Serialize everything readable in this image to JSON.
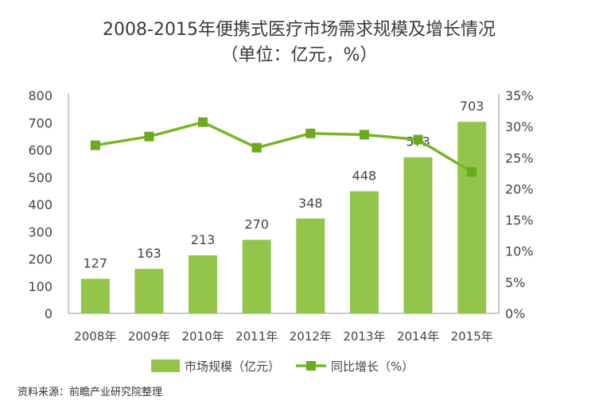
{
  "title": "2008-2015年便携式医疗市场需求规模及增长情况",
  "subtitle": "（单位：亿元，%）",
  "source": "资料来源：前瞻产业研究院整理",
  "colors": {
    "bar": "#92c54a",
    "line": "#78b526",
    "marker": "#6aaa1f",
    "axis": "#999999"
  },
  "chart_data": {
    "type": "bar",
    "categories": [
      "2008年",
      "2009年",
      "2010年",
      "2011年",
      "2012年",
      "2013年",
      "2014年",
      "2015年"
    ],
    "series": [
      {
        "name": "市场规模（亿元）",
        "type": "bar",
        "axis": "left",
        "values": [
          127,
          163,
          213,
          270,
          348,
          448,
          573,
          703
        ]
      },
      {
        "name": "同比增长（%）",
        "type": "line",
        "axis": "right",
        "values": [
          27.0,
          28.4,
          30.7,
          26.6,
          28.9,
          28.7,
          27.9,
          22.7
        ]
      }
    ],
    "ylim": [
      0,
      800
    ],
    "yticks": [
      "0",
      "100",
      "200",
      "300",
      "400",
      "500",
      "600",
      "700",
      "800"
    ],
    "y2lim": [
      0,
      35
    ],
    "y2ticks": [
      "0%",
      "5%",
      "10%",
      "15%",
      "20%",
      "25%",
      "30%",
      "35%"
    ],
    "legend": "bottom"
  }
}
